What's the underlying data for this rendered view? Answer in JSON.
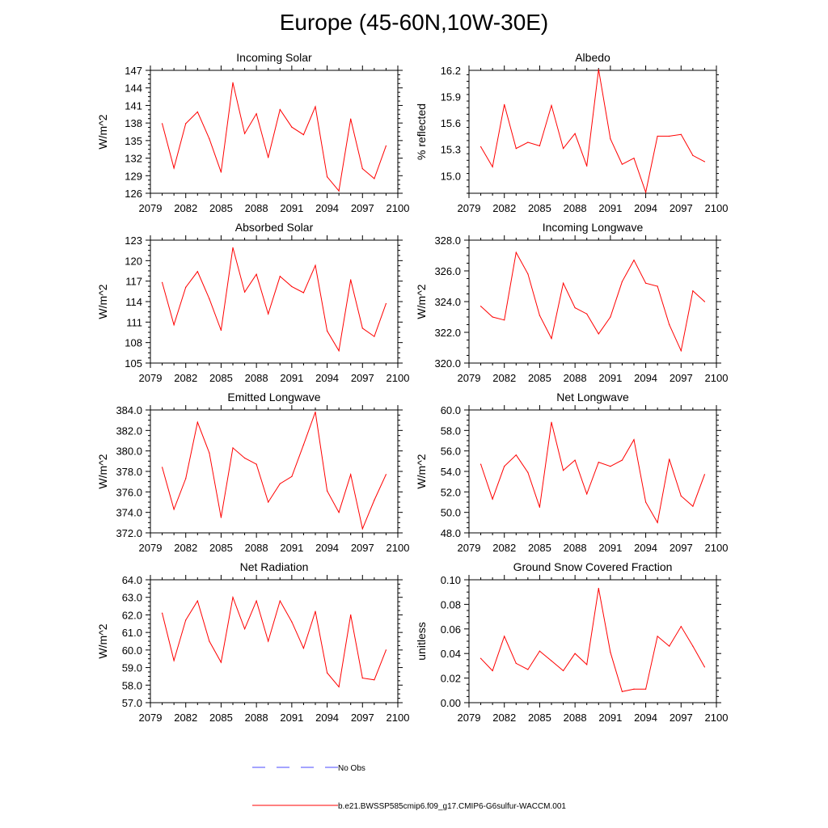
{
  "title": "Europe (45-60N,10W-30E)",
  "colors": {
    "model": "#ff0000",
    "obs": "#4a4aff",
    "axis": "#000000"
  },
  "legend": [
    {
      "label": "No Obs",
      "style": "dashed",
      "color": "#4a4aff"
    },
    {
      "label": "b.e21.BWSSP585cmip6.f09_g17.CMIP6-G6sulfur-WACCM.001",
      "style": "solid",
      "color": "#ff0000"
    }
  ],
  "chart_data": [
    {
      "type": "line",
      "title": "Incoming Solar",
      "ylabel": "W/m^2",
      "xlim": [
        2079,
        2100
      ],
      "xticks": [
        2079,
        2082,
        2085,
        2088,
        2091,
        2094,
        2097,
        2100
      ],
      "ylim": [
        126,
        147
      ],
      "yticks": [
        126,
        129,
        132,
        135,
        138,
        141,
        144,
        147
      ],
      "decimals": 0,
      "series": [
        {
          "name": "b.e21.BWSSP585cmip6.f09_g17.CMIP6-G6sulfur-WACCM.001",
          "x": [
            2080,
            2081,
            2082,
            2083,
            2084,
            2085,
            2086,
            2087,
            2088,
            2089,
            2090,
            2091,
            2092,
            2093,
            2094,
            2095,
            2096,
            2097,
            2098,
            2099
          ],
          "values": [
            137.9,
            130.3,
            137.9,
            139.9,
            135.3,
            129.6,
            144.9,
            136.2,
            139.6,
            132.1,
            140.3,
            137.3,
            136.0,
            140.8,
            128.8,
            126.4,
            138.7,
            130.2,
            128.5,
            134.1
          ]
        }
      ]
    },
    {
      "type": "line",
      "title": "Albedo",
      "ylabel": "% reflected",
      "xlim": [
        2079,
        2100
      ],
      "xticks": [
        2079,
        2082,
        2085,
        2088,
        2091,
        2094,
        2097,
        2100
      ],
      "ylim": [
        14.8,
        16.2
      ],
      "yticks": [
        15.0,
        15.3,
        15.6,
        15.9,
        16.2
      ],
      "decimals": 1,
      "series": [
        {
          "name": "b.e21.BWSSP585cmip6.f09_g17.CMIP6-G6sulfur-WACCM.001",
          "x": [
            2080,
            2081,
            2082,
            2083,
            2084,
            2085,
            2086,
            2087,
            2088,
            2089,
            2090,
            2091,
            2092,
            2093,
            2094,
            2095,
            2096,
            2097,
            2098,
            2099
          ],
          "values": [
            15.33,
            15.1,
            15.81,
            15.31,
            15.38,
            15.34,
            15.8,
            15.31,
            15.48,
            15.11,
            16.21,
            15.42,
            15.13,
            15.2,
            14.81,
            15.45,
            15.45,
            15.47,
            15.23,
            15.16
          ]
        }
      ]
    },
    {
      "type": "line",
      "title": "Absorbed Solar",
      "ylabel": "W/m^2",
      "xlim": [
        2079,
        2100
      ],
      "xticks": [
        2079,
        2082,
        2085,
        2088,
        2091,
        2094,
        2097,
        2100
      ],
      "ylim": [
        105,
        123
      ],
      "yticks": [
        105,
        108,
        111,
        114,
        117,
        120,
        123
      ],
      "decimals": 0,
      "series": [
        {
          "name": "b.e21.BWSSP585cmip6.f09_g17.CMIP6-G6sulfur-WACCM.001",
          "x": [
            2080,
            2081,
            2082,
            2083,
            2084,
            2085,
            2086,
            2087,
            2088,
            2089,
            2090,
            2091,
            2092,
            2093,
            2094,
            2095,
            2096,
            2097,
            2098,
            2099
          ],
          "values": [
            116.8,
            110.6,
            116.1,
            118.4,
            114.4,
            109.8,
            121.9,
            115.4,
            118.0,
            112.2,
            117.7,
            116.2,
            115.3,
            119.3,
            109.7,
            106.8,
            117.2,
            110.1,
            108.9,
            113.7
          ]
        }
      ]
    },
    {
      "type": "line",
      "title": "Incoming Longwave",
      "ylabel": "W/m^2",
      "xlim": [
        2079,
        2100
      ],
      "xticks": [
        2079,
        2082,
        2085,
        2088,
        2091,
        2094,
        2097,
        2100
      ],
      "ylim": [
        320,
        328
      ],
      "yticks": [
        320.0,
        322.0,
        324.0,
        326.0,
        328.0
      ],
      "decimals": 1,
      "series": [
        {
          "name": "b.e21.BWSSP585cmip6.f09_g17.CMIP6-G6sulfur-WACCM.001",
          "x": [
            2080,
            2081,
            2082,
            2083,
            2084,
            2085,
            2086,
            2087,
            2088,
            2089,
            2090,
            2091,
            2092,
            2093,
            2094,
            2095,
            2096,
            2097,
            2098,
            2099
          ],
          "values": [
            323.7,
            323.0,
            322.8,
            327.2,
            325.8,
            323.1,
            321.6,
            325.2,
            323.6,
            323.2,
            321.9,
            323.0,
            325.3,
            326.7,
            325.2,
            325.0,
            322.5,
            320.8,
            324.7,
            324.0
          ]
        }
      ]
    },
    {
      "type": "line",
      "title": "Emitted Longwave",
      "ylabel": "W/m^2",
      "xlim": [
        2079,
        2100
      ],
      "xticks": [
        2079,
        2082,
        2085,
        2088,
        2091,
        2094,
        2097,
        2100
      ],
      "ylim": [
        372,
        384
      ],
      "yticks": [
        372.0,
        374.0,
        376.0,
        378.0,
        380.0,
        382.0,
        384.0
      ],
      "decimals": 1,
      "series": [
        {
          "name": "b.e21.BWSSP585cmip6.f09_g17.CMIP6-G6sulfur-WACCM.001",
          "x": [
            2080,
            2081,
            2082,
            2083,
            2084,
            2085,
            2086,
            2087,
            2088,
            2089,
            2090,
            2091,
            2092,
            2093,
            2094,
            2095,
            2096,
            2097,
            2098,
            2099
          ],
          "values": [
            378.4,
            374.3,
            377.3,
            382.8,
            379.8,
            373.5,
            380.3,
            379.3,
            378.7,
            375.0,
            376.8,
            377.5,
            380.6,
            383.8,
            376.1,
            374.0,
            377.7,
            372.4,
            375.2,
            377.7
          ]
        }
      ]
    },
    {
      "type": "line",
      "title": "Net Longwave",
      "ylabel": "W/m^2",
      "xlim": [
        2079,
        2100
      ],
      "xticks": [
        2079,
        2082,
        2085,
        2088,
        2091,
        2094,
        2097,
        2100
      ],
      "ylim": [
        48,
        60
      ],
      "yticks": [
        48.0,
        50.0,
        52.0,
        54.0,
        56.0,
        58.0,
        60.0
      ],
      "decimals": 1,
      "series": [
        {
          "name": "b.e21.BWSSP585cmip6.f09_g17.CMIP6-G6sulfur-WACCM.001",
          "x": [
            2080,
            2081,
            2082,
            2083,
            2084,
            2085,
            2086,
            2087,
            2088,
            2089,
            2090,
            2091,
            2092,
            2093,
            2094,
            2095,
            2096,
            2097,
            2098,
            2099
          ],
          "values": [
            54.7,
            51.3,
            54.5,
            55.6,
            53.9,
            50.5,
            58.8,
            54.1,
            55.1,
            51.8,
            54.9,
            54.5,
            55.1,
            57.1,
            51.0,
            49.0,
            55.2,
            51.6,
            50.6,
            53.7
          ]
        }
      ]
    },
    {
      "type": "line",
      "title": "Net Radiation",
      "ylabel": "W/m^2",
      "xlim": [
        2079,
        2100
      ],
      "xticks": [
        2079,
        2082,
        2085,
        2088,
        2091,
        2094,
        2097,
        2100
      ],
      "ylim": [
        57,
        64
      ],
      "yticks": [
        57.0,
        58.0,
        59.0,
        60.0,
        61.0,
        62.0,
        63.0,
        64.0
      ],
      "decimals": 1,
      "series": [
        {
          "name": "b.e21.BWSSP585cmip6.f09_g17.CMIP6-G6sulfur-WACCM.001",
          "x": [
            2080,
            2081,
            2082,
            2083,
            2084,
            2085,
            2086,
            2087,
            2088,
            2089,
            2090,
            2091,
            2092,
            2093,
            2094,
            2095,
            2096,
            2097,
            2098,
            2099
          ],
          "values": [
            62.1,
            59.4,
            61.7,
            62.8,
            60.5,
            59.3,
            63.0,
            61.2,
            62.8,
            60.5,
            62.8,
            61.6,
            60.1,
            62.2,
            58.7,
            57.9,
            62.0,
            58.4,
            58.3,
            60.0
          ]
        }
      ]
    },
    {
      "type": "line",
      "title": "Ground Snow Covered Fraction",
      "ylabel": "unitless",
      "xlim": [
        2079,
        2100
      ],
      "xticks": [
        2079,
        2082,
        2085,
        2088,
        2091,
        2094,
        2097,
        2100
      ],
      "ylim": [
        0.0,
        0.1
      ],
      "yticks": [
        0.0,
        0.02,
        0.04,
        0.06,
        0.08,
        0.1
      ],
      "decimals": 2,
      "series": [
        {
          "name": "b.e21.BWSSP585cmip6.f09_g17.CMIP6-G6sulfur-WACCM.001",
          "x": [
            2080,
            2081,
            2082,
            2083,
            2084,
            2085,
            2086,
            2087,
            2088,
            2089,
            2090,
            2091,
            2092,
            2093,
            2094,
            2095,
            2096,
            2097,
            2098,
            2099
          ],
          "values": [
            0.036,
            0.026,
            0.054,
            0.032,
            0.027,
            0.042,
            0.034,
            0.026,
            0.04,
            0.031,
            0.093,
            0.041,
            0.009,
            0.011,
            0.011,
            0.054,
            0.046,
            0.062,
            0.046,
            0.029
          ]
        }
      ]
    }
  ]
}
